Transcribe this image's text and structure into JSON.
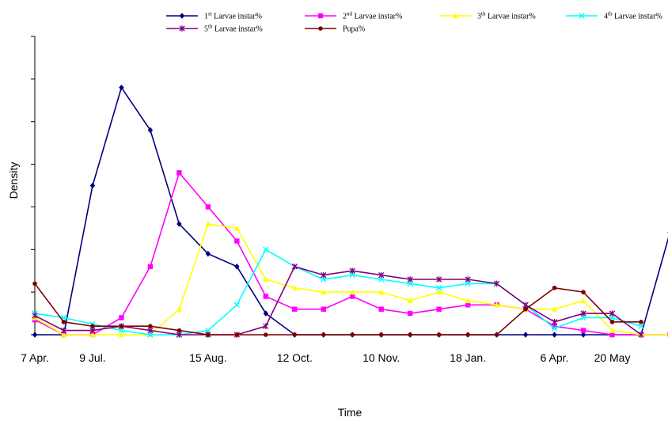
{
  "chart_data": {
    "type": "line",
    "xlabel": "Time",
    "ylabel": "Density",
    "x_tick_labels": [
      "7 Apr.",
      "9 Jul.",
      "15 Aug.",
      "12 Oct.",
      "10 Nov.",
      "18 Jan.",
      "6 Apr.",
      "20 May"
    ],
    "x_tick_positions": [
      0,
      2,
      6,
      9,
      12,
      15,
      18,
      20
    ],
    "y_range": [
      0,
      7
    ],
    "y_ticks": [
      0,
      1,
      2,
      3,
      4,
      5,
      6,
      7
    ],
    "grid": false,
    "legend_position": "top",
    "series": [
      {
        "name_base": "1",
        "name_sup": "st",
        "name_rest": " Larvae instar%",
        "color": "#00007F",
        "marker": "diamond",
        "values": [
          0,
          0,
          3.5,
          5.8,
          4.8,
          2.6,
          1.9,
          1.6,
          0.5,
          0,
          0,
          0,
          0,
          0,
          0,
          0,
          0,
          0,
          0,
          0,
          0,
          0,
          2.4
        ]
      },
      {
        "name_base": "2",
        "name_sup": "nd",
        "name_rest": " Larvae instar%",
        "color": "#FF00FF",
        "marker": "square",
        "values": [
          0.35,
          0,
          0,
          0.4,
          1.6,
          3.8,
          3.0,
          2.2,
          0.9,
          0.6,
          0.6,
          0.9,
          0.6,
          0.5,
          0.6,
          0.7,
          0.7,
          0.6,
          0.2,
          0.1,
          0,
          0,
          0
        ]
      },
      {
        "name_base": "3",
        "name_sup": "th",
        "name_rest": " Larvae instar%",
        "color": "#FFFF00",
        "marker": "triangle",
        "values": [
          0.4,
          0,
          0,
          0,
          0,
          0.6,
          2.6,
          2.5,
          1.3,
          1.1,
          1.0,
          1.0,
          1.0,
          0.8,
          1.0,
          0.8,
          0.7,
          0.6,
          0.6,
          0.8,
          0.1,
          0,
          0
        ]
      },
      {
        "name_base": "4",
        "name_sup": "th",
        "name_rest": " Larvae instar%",
        "color": "#00FFFF",
        "marker": "x",
        "values": [
          0.5,
          0.4,
          0.25,
          0.1,
          0,
          0,
          0.1,
          0.7,
          2.0,
          1.6,
          1.3,
          1.4,
          1.3,
          1.2,
          1.1,
          1.2,
          1.2,
          0.7,
          0.15,
          0.4,
          0.4,
          0.2
        ]
      },
      {
        "name_base": "5",
        "name_sup": "th",
        "name_rest": " Larvae instar%",
        "color": "#7F007F",
        "marker": "star",
        "values": [
          0.45,
          0.1,
          0.1,
          0.2,
          0.1,
          0,
          0,
          0,
          0.2,
          1.6,
          1.4,
          1.5,
          1.4,
          1.3,
          1.3,
          1.3,
          1.2,
          0.7,
          0.3,
          0.5,
          0.5,
          0
        ]
      },
      {
        "name_base": "Pupa%",
        "name_sup": "",
        "name_rest": "",
        "color": "#7F0000",
        "marker": "circle",
        "values": [
          1.2,
          0.3,
          0.2,
          0.2,
          0.2,
          0.1,
          0,
          0,
          0,
          0,
          0,
          0,
          0,
          0,
          0,
          0,
          0,
          0.6,
          1.1,
          1.0,
          0.3,
          0.3
        ]
      }
    ]
  }
}
